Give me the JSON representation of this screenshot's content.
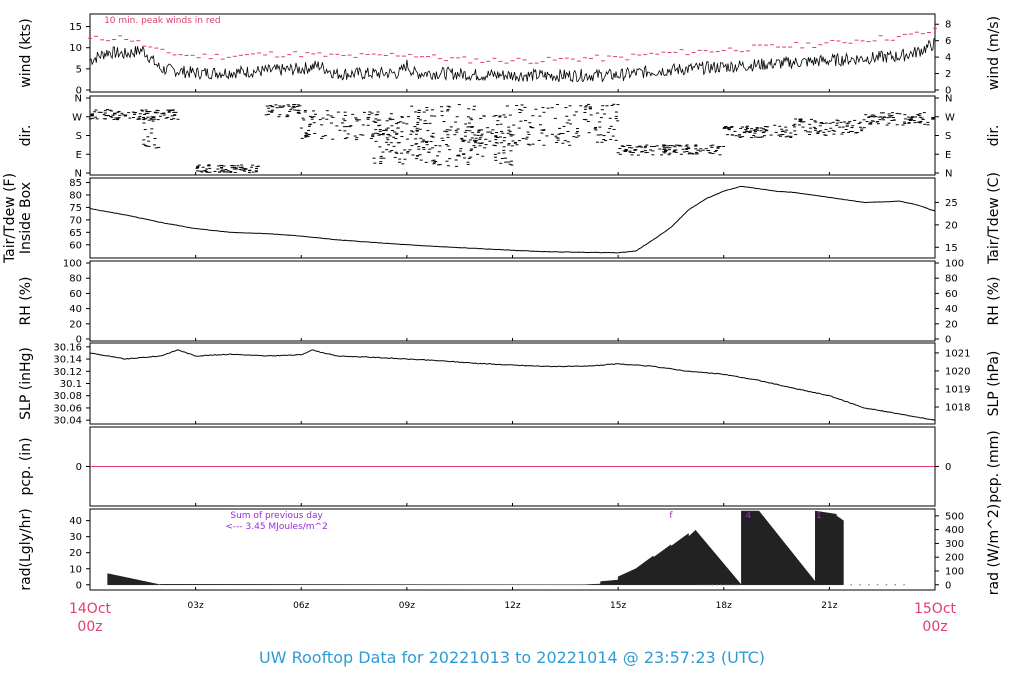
{
  "colors": {
    "frame": "#000000",
    "data_line": "#000000",
    "peak_wind": "#e0406a",
    "red_label": "#e0406a",
    "purple_note": "#9a2bd6",
    "title_blue": "#2e9bd6",
    "rad_fill": "#222222"
  },
  "footer": {
    "title": "UW Rooftop Data for 20221013  to  20221014 @ 23:57:23  (UTC)"
  },
  "chart_data": {
    "type": "line",
    "time_axis": {
      "hours": [
        0,
        3,
        6,
        9,
        12,
        15,
        18,
        21,
        24
      ],
      "labels": [
        "",
        "03z",
        "06z",
        "09z",
        "12z",
        "15z",
        "18z",
        "21z",
        ""
      ],
      "start_label": [
        "14Oct",
        "00z"
      ],
      "end_label": [
        "15Oct",
        "00z"
      ]
    },
    "panels": [
      {
        "id": "wind",
        "ylabel_left": "wind (kts)",
        "ylabel_right": "wind (m/s)",
        "ylim": [
          0,
          17.5
        ],
        "ticks_left": [
          0,
          5,
          10,
          15
        ],
        "ticks_right": [
          0,
          2,
          4,
          6,
          8
        ],
        "right_factor": 0.5144,
        "note": "10 min. peak winds in red",
        "series_points": [
          [
            0,
            7
          ],
          [
            0.5,
            9
          ],
          [
            1,
            8.5
          ],
          [
            1.5,
            9.5
          ],
          [
            2,
            5
          ],
          [
            3,
            4
          ],
          [
            4,
            4.2
          ],
          [
            5,
            4.5
          ],
          [
            6,
            5
          ],
          [
            6.5,
            5.8
          ],
          [
            7,
            3.8
          ],
          [
            8,
            3.9
          ],
          [
            8.8,
            4
          ],
          [
            9,
            6
          ],
          [
            9.2,
            4
          ],
          [
            10,
            4
          ],
          [
            11,
            3.6
          ],
          [
            12,
            3.5
          ],
          [
            13,
            3.4
          ],
          [
            14,
            3.5
          ],
          [
            15,
            3.5
          ],
          [
            16,
            4.5
          ],
          [
            17,
            5
          ],
          [
            18,
            5.5
          ],
          [
            19,
            6
          ],
          [
            20,
            6.5
          ],
          [
            21,
            7
          ],
          [
            22,
            7.5
          ],
          [
            23,
            8
          ],
          [
            23.5,
            9
          ],
          [
            24,
            11
          ]
        ],
        "peak_points": [
          [
            0,
            12
          ],
          [
            1,
            12.5
          ],
          [
            2,
            9
          ],
          [
            3,
            8
          ],
          [
            4,
            8
          ],
          [
            5,
            8.5
          ],
          [
            6,
            8.5
          ],
          [
            7,
            8
          ],
          [
            8,
            8
          ],
          [
            9,
            8.5
          ],
          [
            10,
            7.5
          ],
          [
            11,
            7
          ],
          [
            12,
            7
          ],
          [
            13,
            7
          ],
          [
            14,
            7.5
          ],
          [
            15,
            7.5
          ],
          [
            16,
            8.5
          ],
          [
            17,
            9
          ],
          [
            18,
            9.5
          ],
          [
            19,
            10
          ],
          [
            20,
            10.5
          ],
          [
            21,
            11
          ],
          [
            22,
            12
          ],
          [
            23,
            12.5
          ],
          [
            24,
            14
          ]
        ]
      },
      {
        "id": "dir",
        "ylabel_left": "dir.",
        "ylabel_right": "dir.",
        "ylim": [
          0,
          360
        ],
        "tick_values": [
          0,
          90,
          180,
          270,
          360
        ],
        "tick_labels": [
          "N",
          "E",
          "S",
          "W",
          "N"
        ],
        "clusters": [
          [
            0,
            2.5,
            280,
            25
          ],
          [
            1.5,
            2,
            200,
            80
          ],
          [
            3,
            4.8,
            20,
            20
          ],
          [
            5,
            6,
            300,
            30
          ],
          [
            6,
            9,
            230,
            70
          ],
          [
            9,
            15,
            230,
            100
          ],
          [
            8,
            12,
            120,
            90
          ],
          [
            15,
            18,
            110,
            25
          ],
          [
            18,
            20,
            200,
            30
          ],
          [
            20,
            22,
            220,
            40
          ],
          [
            22,
            24,
            260,
            30
          ]
        ]
      },
      {
        "id": "temp",
        "ylabel_left": [
          "Tair/Tdew (F)",
          "Inside Box"
        ],
        "ylabel_right": "Tair/Tdew (C)",
        "ylim": [
          55.5,
          86
        ],
        "ticks_left": [
          60,
          65,
          70,
          75,
          80,
          85
        ],
        "ticks_right": [
          15,
          20,
          25
        ],
        "series_points": [
          [
            0,
            74.5
          ],
          [
            1,
            72
          ],
          [
            2,
            69
          ],
          [
            3,
            66.5
          ],
          [
            4,
            65
          ],
          [
            5,
            64.5
          ],
          [
            6,
            63.5
          ],
          [
            7,
            62
          ],
          [
            8,
            61
          ],
          [
            9,
            60
          ],
          [
            10,
            59.2
          ],
          [
            11,
            58.5
          ],
          [
            12,
            57.8
          ],
          [
            13,
            57.2
          ],
          [
            14,
            57
          ],
          [
            15,
            56.8
          ],
          [
            15.5,
            57.5
          ],
          [
            16,
            62
          ],
          [
            16.5,
            67
          ],
          [
            17,
            74
          ],
          [
            17.5,
            78.5
          ],
          [
            18,
            81.5
          ],
          [
            18.5,
            83.5
          ],
          [
            19,
            82.5
          ],
          [
            19.5,
            81.5
          ],
          [
            20,
            81
          ],
          [
            21,
            79
          ],
          [
            22,
            77
          ],
          [
            23,
            77.5
          ],
          [
            23.5,
            76
          ],
          [
            24,
            73.5
          ]
        ]
      },
      {
        "id": "rh",
        "ylabel_left": "RH (%)",
        "ylabel_right": "RH (%)",
        "ylim": [
          0,
          100
        ],
        "ticks_left": [
          0,
          20,
          40,
          60,
          80,
          100
        ],
        "ticks_right": [
          0,
          20,
          40,
          60,
          80,
          100
        ]
      },
      {
        "id": "slp",
        "ylabel_left": "SLP (inHg)",
        "ylabel_right": "SLP (hPa)",
        "ylim": [
          30.037,
          30.163
        ],
        "ticks_left": [
          30.04,
          30.06,
          30.08,
          30.1,
          30.12,
          30.14,
          30.16
        ],
        "ticks_right": [
          1018,
          1019,
          1020,
          1021
        ],
        "hpa_per_inhg": 33.8639,
        "series_points": [
          [
            0,
            30.15
          ],
          [
            1,
            30.14
          ],
          [
            2,
            30.145
          ],
          [
            2.5,
            30.155
          ],
          [
            3,
            30.145
          ],
          [
            4,
            30.148
          ],
          [
            5,
            30.145
          ],
          [
            6,
            30.147
          ],
          [
            6.3,
            30.155
          ],
          [
            7,
            30.145
          ],
          [
            8,
            30.143
          ],
          [
            9,
            30.14
          ],
          [
            10,
            30.137
          ],
          [
            11,
            30.133
          ],
          [
            12,
            30.13
          ],
          [
            13,
            30.128
          ],
          [
            14,
            30.128
          ],
          [
            15,
            30.132
          ],
          [
            16,
            30.128
          ],
          [
            17,
            30.12
          ],
          [
            18,
            30.115
          ],
          [
            19,
            30.105
          ],
          [
            20,
            30.092
          ],
          [
            21,
            30.08
          ],
          [
            22,
            30.06
          ],
          [
            23,
            30.05
          ],
          [
            23.5,
            30.045
          ],
          [
            24,
            30.04
          ]
        ]
      },
      {
        "id": "pcp",
        "ylabel_left": "pcp. (in)",
        "ylabel_right": "pcp. (mm)",
        "ylim": [
          -1,
          1
        ],
        "ticks_left": [
          0
        ],
        "ticks_right": [
          0
        ],
        "series_points": [
          [
            0,
            0
          ],
          [
            24,
            0
          ]
        ]
      },
      {
        "id": "rad",
        "ylabel_left": "rad(Lgly/hr)",
        "ylabel_right": "rad (W/m^2)",
        "ylim": [
          -2,
          46
        ],
        "ticks_left": [
          0,
          10,
          20,
          30,
          40
        ],
        "ticks_right": [
          0,
          100,
          200,
          300,
          400,
          500
        ],
        "wm2_per_lgly": 11.63,
        "note_lines": [
          "Sum of previous day",
          "<--- 3.45 MJoules/m^2"
        ],
        "bursts": [
          [
            0.5,
            7,
            0
          ],
          [
            2,
            0.3,
            0
          ],
          [
            14,
            0,
            0.5
          ],
          [
            14.5,
            2,
            3
          ],
          [
            15,
            5,
            10
          ],
          [
            15.5,
            10,
            18
          ],
          [
            16,
            17,
            25
          ],
          [
            16.5,
            24,
            32
          ],
          [
            17,
            30,
            34
          ],
          [
            17.2,
            34,
            0
          ],
          [
            18.5,
            46,
            46
          ],
          [
            19,
            46,
            2
          ],
          [
            20.6,
            46,
            44
          ],
          [
            21.2,
            43,
            40
          ],
          [
            21.4,
            0,
            0
          ]
        ],
        "burst_labels": [
          [
            16.5,
            "f"
          ],
          [
            18.7,
            "4"
          ],
          [
            20.7,
            "1"
          ]
        ]
      }
    ]
  }
}
